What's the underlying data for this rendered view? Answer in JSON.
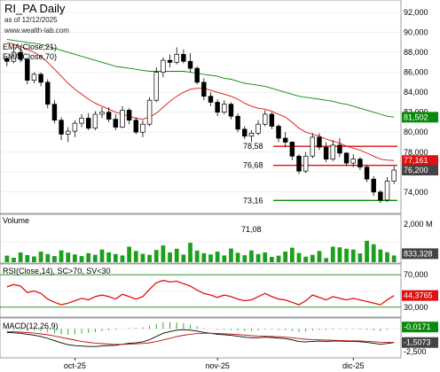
{
  "chart_data": {
    "type": "candlestick",
    "header": {
      "title": "RI_PA Daily",
      "date": "as of 12/12/2025",
      "site": "www.wealth-lab.com"
    },
    "x_labels": [
      "oct-25",
      "nov-25",
      "dic-25"
    ],
    "price_panel": {
      "yticks": [
        "92,000",
        "90,000",
        "88,000",
        "86,000",
        "84,000",
        "82,000",
        "80,000",
        "78,000",
        "76,000",
        "74,000"
      ],
      "ylim": [
        72.3,
        92.8
      ],
      "ema_labels": [
        "EMA(Close,21)",
        "EMA(Close,70)"
      ],
      "ema21_color": "#e01010",
      "ema70_color": "#0a8a0a",
      "last_price_tag": "76,200",
      "ema21_tag": "77,161",
      "ema70_tag": "81,502",
      "levels": [
        {
          "label": "78,58",
          "value": 78.58,
          "color": "#e01010"
        },
        {
          "label": "76,68",
          "value": 76.68,
          "color": "#e01010"
        },
        {
          "label": "73,16",
          "value": 73.16,
          "color": "#0a8a0a"
        }
      ],
      "candles": [
        [
          87.4,
          87.6,
          86.6,
          87.1
        ],
        [
          87.1,
          88.6,
          86.9,
          88.0
        ],
        [
          88.0,
          88.4,
          87.0,
          87.3
        ],
        [
          87.3,
          87.4,
          84.8,
          85.2
        ],
        [
          85.2,
          86.0,
          84.9,
          85.8
        ],
        [
          85.8,
          86.0,
          84.6,
          85.0
        ],
        [
          85.0,
          85.3,
          82.4,
          82.8
        ],
        [
          82.8,
          83.2,
          80.9,
          81.2
        ],
        [
          81.2,
          81.5,
          79.2,
          79.8
        ],
        [
          79.8,
          80.5,
          79.0,
          80.1
        ],
        [
          80.1,
          81.2,
          79.5,
          80.9
        ],
        [
          80.9,
          81.8,
          80.5,
          81.4
        ],
        [
          81.4,
          81.9,
          80.2,
          80.4
        ],
        [
          80.4,
          82.1,
          80.2,
          81.8
        ],
        [
          81.8,
          82.5,
          81.4,
          82.0
        ],
        [
          82.0,
          82.5,
          81.0,
          81.3
        ],
        [
          81.3,
          81.8,
          80.2,
          80.5
        ],
        [
          80.5,
          82.6,
          80.4,
          82.2
        ],
        [
          82.2,
          82.4,
          80.8,
          81.2
        ],
        [
          81.2,
          81.5,
          79.8,
          80.0
        ],
        [
          80.0,
          81.2,
          79.5,
          80.8
        ],
        [
          80.8,
          83.5,
          80.6,
          83.2
        ],
        [
          83.2,
          86.5,
          83.0,
          86.0
        ],
        [
          86.0,
          87.5,
          85.5,
          87.2
        ],
        [
          87.2,
          87.8,
          86.5,
          87.0
        ],
        [
          87.0,
          88.5,
          86.8,
          87.8
        ],
        [
          87.8,
          88.3,
          86.9,
          87.1
        ],
        [
          87.1,
          87.9,
          86.0,
          86.4
        ],
        [
          86.4,
          86.6,
          84.8,
          85.0
        ],
        [
          85.0,
          85.4,
          83.2,
          83.6
        ],
        [
          83.6,
          84.0,
          82.6,
          83.0
        ],
        [
          83.0,
          83.3,
          81.6,
          82.0
        ],
        [
          82.0,
          83.2,
          81.8,
          82.8
        ],
        [
          82.8,
          83.0,
          81.3,
          81.6
        ],
        [
          81.6,
          81.9,
          80.0,
          80.3
        ],
        [
          80.3,
          80.6,
          79.3,
          79.6
        ],
        [
          79.6,
          80.2,
          79.0,
          79.9
        ],
        [
          79.9,
          81.2,
          79.7,
          80.8
        ],
        [
          80.8,
          82.2,
          80.6,
          81.8
        ],
        [
          81.8,
          82.0,
          80.3,
          80.6
        ],
        [
          80.6,
          80.8,
          79.0,
          79.4
        ],
        [
          79.4,
          80.0,
          78.5,
          79.0
        ],
        [
          79.0,
          79.1,
          77.2,
          77.6
        ],
        [
          77.6,
          77.8,
          75.8,
          76.1
        ],
        [
          76.1,
          78.0,
          75.9,
          77.6
        ],
        [
          77.6,
          79.9,
          77.4,
          79.5
        ],
        [
          79.5,
          79.9,
          78.2,
          78.5
        ],
        [
          78.5,
          79.0,
          77.0,
          77.3
        ],
        [
          77.3,
          79.2,
          77.1,
          78.7
        ],
        [
          78.7,
          79.4,
          77.5,
          77.9
        ],
        [
          77.9,
          78.0,
          76.6,
          76.9
        ],
        [
          76.9,
          77.8,
          76.5,
          77.3
        ],
        [
          77.3,
          77.5,
          76.2,
          76.5
        ],
        [
          76.5,
          76.7,
          75.0,
          75.3
        ],
        [
          75.3,
          75.6,
          73.6,
          74.0
        ],
        [
          74.0,
          74.2,
          72.9,
          73.2
        ],
        [
          73.2,
          75.5,
          73.0,
          75.1
        ],
        [
          75.1,
          76.6,
          74.8,
          76.2
        ]
      ],
      "ema21": [
        89.0,
        88.8,
        88.6,
        88.3,
        88.0,
        87.6,
        87.0,
        86.3,
        85.6,
        84.9,
        84.3,
        83.8,
        83.3,
        82.9,
        82.6,
        82.3,
        82.0,
        81.8,
        81.6,
        81.4,
        81.3,
        81.5,
        81.9,
        82.5,
        83.1,
        83.6,
        84.0,
        84.3,
        84.4,
        84.4,
        84.2,
        84.0,
        83.8,
        83.6,
        83.3,
        82.9,
        82.6,
        82.4,
        82.3,
        82.1,
        81.8,
        81.5,
        81.0,
        80.4,
        80.0,
        79.8,
        79.6,
        79.3,
        79.1,
        78.9,
        78.6,
        78.4,
        78.2,
        77.9,
        77.6,
        77.3,
        77.2,
        77.16
      ],
      "ema70": [
        89.3,
        89.2,
        89.1,
        89.0,
        88.9,
        88.8,
        88.6,
        88.4,
        88.2,
        88.0,
        87.8,
        87.6,
        87.4,
        87.2,
        87.0,
        86.8,
        86.6,
        86.5,
        86.4,
        86.3,
        86.2,
        86.1,
        86.1,
        86.1,
        86.1,
        86.1,
        86.1,
        86.0,
        85.9,
        85.8,
        85.7,
        85.6,
        85.4,
        85.3,
        85.1,
        84.9,
        84.8,
        84.7,
        84.6,
        84.4,
        84.2,
        84.0,
        83.8,
        83.6,
        83.5,
        83.4,
        83.3,
        83.2,
        83.1,
        82.9,
        82.8,
        82.6,
        82.4,
        82.2,
        82.0,
        81.8,
        81.6,
        81.5
      ]
    },
    "volume_panel": {
      "label": "Volume",
      "annotation": "71,08",
      "yticks": [
        "2,000 M",
        "833,328"
      ],
      "values": [
        0.32,
        0.22,
        0.48,
        0.35,
        0.28,
        0.52,
        0.4,
        0.3,
        0.58,
        0.47,
        0.38,
        0.3,
        0.44,
        0.36,
        0.62,
        0.48,
        0.4,
        0.33,
        0.76,
        0.55,
        0.41,
        0.36,
        0.6,
        0.82,
        0.48,
        0.66,
        0.37,
        0.95,
        0.57,
        0.44,
        0.38,
        0.52,
        0.33,
        0.67,
        0.46,
        0.34,
        0.58,
        0.4,
        0.48,
        0.26,
        0.32,
        0.52,
        0.71,
        0.45,
        0.27,
        0.36,
        0.55,
        0.2,
        0.76,
        0.73,
        0.66,
        0.62,
        0.43,
        1.05,
        0.88,
        0.62,
        0.49,
        0.33
      ],
      "ylim": [
        0,
        2.0
      ],
      "bar_color": "#1ca01c"
    },
    "rsi_panel": {
      "label": "RSI(Close,14), SC>70, SV<30",
      "yticks": [
        "70,000",
        "44,3765",
        "30,000"
      ],
      "ylim": [
        20,
        80
      ],
      "values": [
        55,
        58,
        56,
        48,
        50,
        47,
        40,
        36,
        33,
        35,
        38,
        41,
        39,
        43,
        45,
        43,
        40,
        46,
        43,
        40,
        43,
        52,
        60,
        63,
        61,
        62,
        59,
        56,
        51,
        47,
        45,
        42,
        45,
        43,
        40,
        38,
        39,
        43,
        47,
        43,
        40,
        39,
        36,
        33,
        38,
        45,
        42,
        39,
        43,
        41,
        39,
        41,
        39,
        37,
        35,
        33,
        39,
        44.38
      ],
      "color": "#e01010",
      "overbought": 70,
      "oversold": 30
    },
    "macd_panel": {
      "label": "MACD(12,26,9)",
      "yticks": [
        "-0,0171",
        "-1,5073",
        "-2,500"
      ],
      "ylim": [
        -3.0,
        0.8
      ],
      "macd": [
        -0.4,
        -0.45,
        -0.5,
        -0.6,
        -0.7,
        -0.85,
        -1.05,
        -1.3,
        -1.55,
        -1.75,
        -1.85,
        -1.9,
        -1.95,
        -1.95,
        -1.9,
        -1.85,
        -1.82,
        -1.7,
        -1.6,
        -1.55,
        -1.45,
        -1.2,
        -0.85,
        -0.5,
        -0.3,
        -0.15,
        -0.1,
        -0.15,
        -0.25,
        -0.4,
        -0.5,
        -0.6,
        -0.65,
        -0.72,
        -0.82,
        -0.92,
        -0.98,
        -0.98,
        -0.92,
        -0.95,
        -1.02,
        -1.08,
        -1.22,
        -1.4,
        -1.45,
        -1.38,
        -1.35,
        -1.38,
        -1.35,
        -1.35,
        -1.38,
        -1.38,
        -1.42,
        -1.5,
        -1.6,
        -1.7,
        -1.62,
        -1.51
      ],
      "signal": [
        -0.3,
        -0.33,
        -0.37,
        -0.42,
        -0.48,
        -0.56,
        -0.66,
        -0.79,
        -0.94,
        -1.1,
        -1.25,
        -1.38,
        -1.49,
        -1.58,
        -1.64,
        -1.68,
        -1.71,
        -1.71,
        -1.69,
        -1.66,
        -1.62,
        -1.54,
        -1.41,
        -1.23,
        -1.04,
        -0.86,
        -0.71,
        -0.6,
        -0.53,
        -0.5,
        -0.5,
        -0.52,
        -0.55,
        -0.58,
        -0.63,
        -0.69,
        -0.75,
        -0.8,
        -0.82,
        -0.85,
        -0.88,
        -0.92,
        -0.98,
        -1.07,
        -1.15,
        -1.19,
        -1.22,
        -1.25,
        -1.27,
        -1.29,
        -1.31,
        -1.32,
        -1.34,
        -1.37,
        -1.42,
        -1.47,
        -1.5,
        -1.5
      ],
      "hist_color": "#1ca01c"
    }
  }
}
